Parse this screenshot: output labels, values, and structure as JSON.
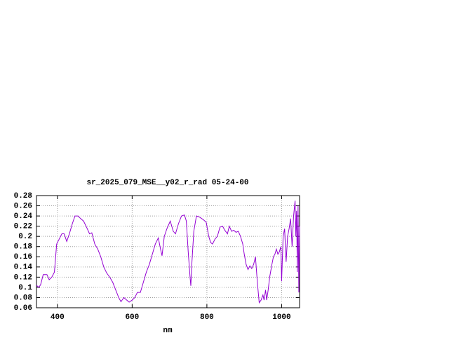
{
  "chart_data": {
    "type": "line",
    "title": "sr_2025_079_MSE__y02_r_rad 05-24-00",
    "x_label": "nm",
    "grid": true,
    "xlim": [
      344,
      1048
    ],
    "xticks": [
      400,
      600,
      800,
      1000
    ],
    "ylim": [
      0.06,
      0.28
    ],
    "yticks": [
      0.06,
      0.08,
      0.1,
      0.12,
      0.14,
      0.16,
      0.18,
      0.2,
      0.22,
      0.24,
      0.26,
      0.28
    ],
    "series": [
      {
        "color": "#9400d3",
        "x": [
          344,
          350,
          355,
          362,
          372,
          378,
          385,
          392,
          398,
          405,
          412,
          418,
          425,
          432,
          440,
          447,
          455,
          462,
          470,
          478,
          486,
          492,
          500,
          508,
          516,
          524,
          532,
          540,
          548,
          556,
          564,
          570,
          578,
          584,
          592,
          600,
          607,
          614,
          622,
          630,
          638,
          646,
          654,
          662,
          670,
          676,
          680,
          686,
          693,
          702,
          710,
          716,
          724,
          732,
          740,
          745,
          750,
          755,
          757,
          760,
          765,
          772,
          780,
          790,
          798,
          805,
          810,
          815,
          822,
          828,
          835,
          842,
          848,
          855,
          860,
          866,
          872,
          878,
          884,
          890,
          896,
          900,
          905,
          910,
          915,
          920,
          925,
          930,
          935,
          940,
          945,
          950,
          953,
          957,
          960,
          964,
          968,
          974,
          978,
          982,
          986,
          990,
          994,
          998,
          1000,
          1004,
          1008,
          1012,
          1016,
          1020,
          1024,
          1028,
          1032,
          1036,
          1038,
          1040,
          1042,
          1044,
          1046,
          1048
        ],
        "values": [
          0.104,
          0.1,
          0.105,
          0.125,
          0.125,
          0.115,
          0.12,
          0.13,
          0.185,
          0.195,
          0.205,
          0.205,
          0.19,
          0.205,
          0.225,
          0.24,
          0.24,
          0.235,
          0.23,
          0.218,
          0.205,
          0.207,
          0.185,
          0.175,
          0.16,
          0.14,
          0.128,
          0.12,
          0.11,
          0.095,
          0.08,
          0.072,
          0.08,
          0.076,
          0.071,
          0.075,
          0.08,
          0.09,
          0.09,
          0.11,
          0.13,
          0.145,
          0.165,
          0.185,
          0.197,
          0.175,
          0.162,
          0.2,
          0.215,
          0.23,
          0.21,
          0.205,
          0.225,
          0.24,
          0.242,
          0.23,
          0.17,
          0.12,
          0.103,
          0.15,
          0.21,
          0.24,
          0.238,
          0.233,
          0.228,
          0.2,
          0.188,
          0.185,
          0.195,
          0.2,
          0.218,
          0.22,
          0.212,
          0.205,
          0.22,
          0.21,
          0.212,
          0.208,
          0.21,
          0.2,
          0.185,
          0.165,
          0.145,
          0.135,
          0.142,
          0.137,
          0.145,
          0.16,
          0.11,
          0.07,
          0.075,
          0.085,
          0.075,
          0.095,
          0.075,
          0.095,
          0.12,
          0.145,
          0.16,
          0.165,
          0.175,
          0.165,
          0.17,
          0.18,
          0.112,
          0.2,
          0.215,
          0.15,
          0.2,
          0.215,
          0.235,
          0.18,
          0.24,
          0.27,
          0.2,
          0.25,
          0.13,
          0.26,
          0.09,
          0.22
        ]
      }
    ]
  }
}
